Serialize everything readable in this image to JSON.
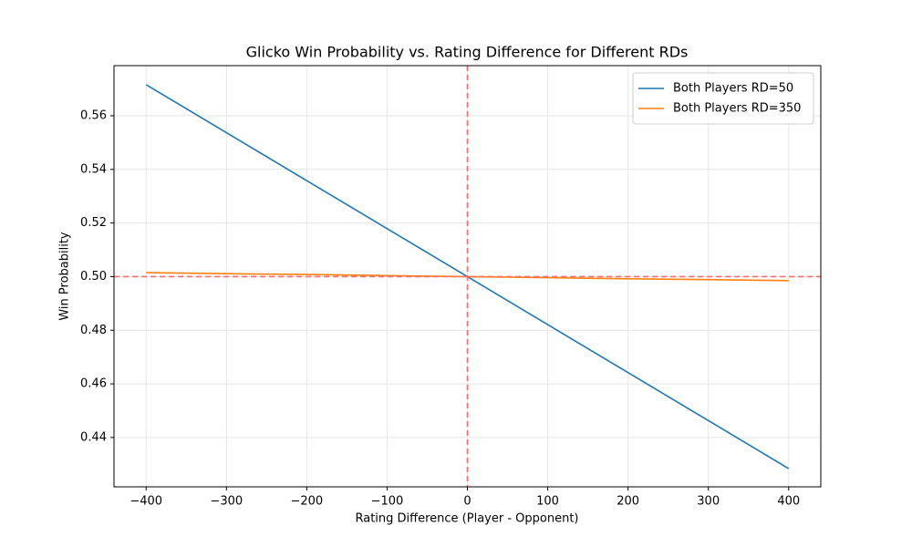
{
  "chart_data": {
    "type": "line",
    "title": "Glicko Win Probability vs. Rating Difference for Different RDs",
    "xlabel": "Rating Difference (Player - Opponent)",
    "ylabel": "Win Probability",
    "x": [
      -400,
      -300,
      -200,
      -100,
      0,
      100,
      200,
      300,
      400
    ],
    "series": [
      {
        "name": "Both Players RD=50",
        "color": "#1f77b4",
        "values": [
          0.5716,
          0.5537,
          0.5358,
          0.5179,
          0.5,
          0.4821,
          0.4642,
          0.4463,
          0.4284
        ]
      },
      {
        "name": "Both Players RD=350",
        "color": "#ff7f0e",
        "values": [
          0.5015,
          0.5011,
          0.5008,
          0.5004,
          0.5,
          0.4996,
          0.4992,
          0.4989,
          0.4985
        ]
      }
    ],
    "xlim": [
      -440,
      440
    ],
    "ylim": [
      0.4216,
      0.5787
    ],
    "xticks": [
      {
        "value": -400,
        "label": "−400"
      },
      {
        "value": -300,
        "label": "−300"
      },
      {
        "value": -200,
        "label": "−200"
      },
      {
        "value": -100,
        "label": "−100"
      },
      0,
      100,
      200,
      300,
      400
    ],
    "yticks": [
      {
        "value": 0.44,
        "label": "0.44"
      },
      {
        "value": 0.46,
        "label": "0.46"
      },
      {
        "value": 0.48,
        "label": "0.48"
      },
      {
        "value": 0.5,
        "label": "0.50"
      },
      {
        "value": 0.52,
        "label": "0.52"
      },
      {
        "value": 0.54,
        "label": "0.54"
      },
      {
        "value": 0.56,
        "label": "0.56"
      }
    ],
    "grid": true,
    "legend": "upper-right",
    "reference_lines": {
      "color": "#ff6b6b",
      "y": 0.5,
      "x": 0
    }
  }
}
